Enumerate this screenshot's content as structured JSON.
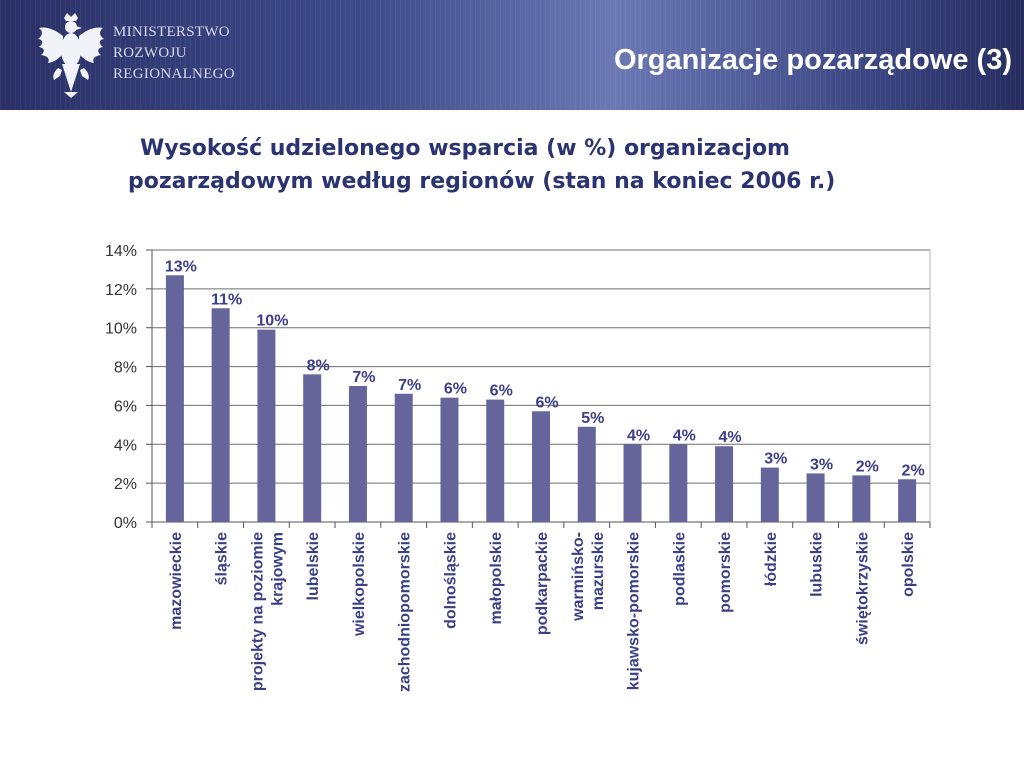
{
  "header": {
    "ministry_lines": [
      "MINISTERSTWO",
      "ROZWOJU",
      "REGIONALNEGO"
    ],
    "slide_title": "Organizacje pozarządowe (3)"
  },
  "colors": {
    "bar": "#65659b",
    "label": "#3c3f86",
    "header_dark": "#2a3066"
  },
  "chart_data": {
    "type": "bar",
    "title_lines": [
      "Wysokość udzielonego wsparcia (w %) organizacjom",
      "pozarządowym według regionów (stan na koniec 2006 r.)"
    ],
    "categories": [
      "mazowieckie",
      "śląskie",
      "projekty na poziomie krajowym",
      "lubelskie",
      "wielkopolskie",
      "zachodniopomorskie",
      "dolnośląskie",
      "małopolskie",
      "podkarpackie",
      "warmińsko-mazurskie",
      "kujawsko-pomorskie",
      "podlaskie",
      "pomorskie",
      "łódzkie",
      "lubuskie",
      "świętokrzyskie",
      "opolskie"
    ],
    "category_label_lines": [
      [
        "mazowieckie"
      ],
      [
        "śląskie"
      ],
      [
        "projekty na poziomie",
        "krajowym"
      ],
      [
        "lubelskie"
      ],
      [
        "wielkopolskie"
      ],
      [
        "zachodniopomorskie"
      ],
      [
        "dolnośląskie"
      ],
      [
        "małopolskie"
      ],
      [
        "podkarpackie"
      ],
      [
        "warmińsko-",
        "mazurskie"
      ],
      [
        "kujawsko-pomorskie"
      ],
      [
        "podlaskie"
      ],
      [
        "pomorskie"
      ],
      [
        "łódzkie"
      ],
      [
        "lubuskie"
      ],
      [
        "świętokrzyskie"
      ],
      [
        "opolskie"
      ]
    ],
    "values": [
      12.7,
      11.0,
      9.9,
      7.6,
      7.0,
      6.6,
      6.4,
      6.3,
      5.7,
      4.9,
      4.0,
      4.0,
      3.9,
      2.8,
      2.5,
      2.4,
      2.2
    ],
    "data_labels": [
      "13%",
      "11%",
      "10%",
      "8%",
      "7%",
      "7%",
      "6%",
      "6%",
      "6%",
      "5%",
      "4%",
      "4%",
      "4%",
      "3%",
      "3%",
      "2%",
      "2%"
    ],
    "y_ticks": [
      "0%",
      "2%",
      "4%",
      "6%",
      "8%",
      "10%",
      "12%",
      "14%"
    ],
    "ylim": [
      0,
      14
    ],
    "y_tick_step": 2,
    "grid": true,
    "legend": false
  }
}
